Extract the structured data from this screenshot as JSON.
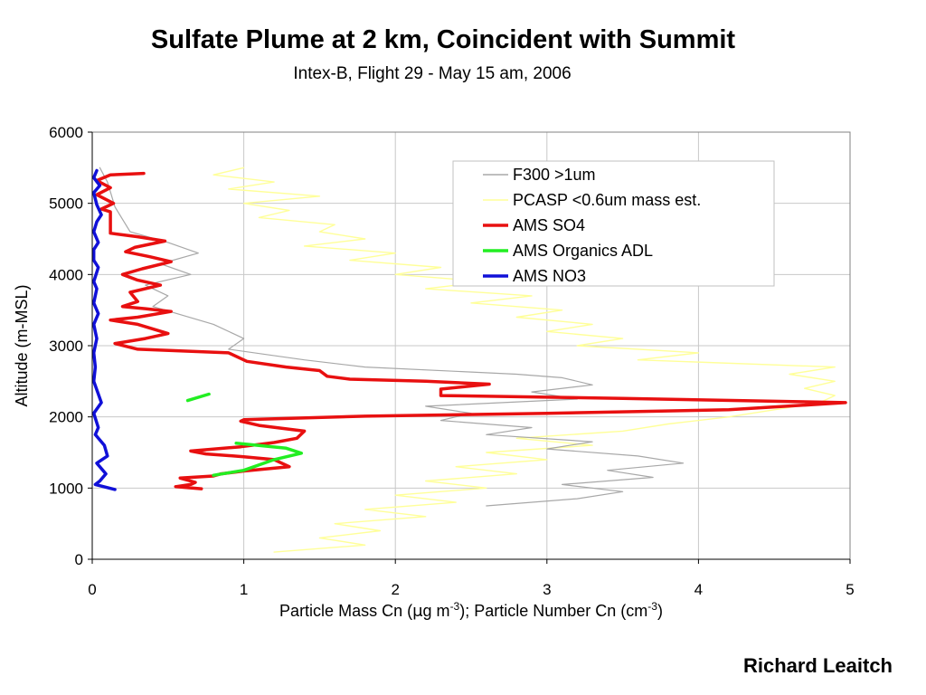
{
  "title": "Sulfate Plume at 2 km, Coincident with Summit",
  "subtitle": "Intex-B, Flight 29 - May 15 am, 2006",
  "author": "Richard Leaitch",
  "colors": {
    "so4": "#e81010",
    "organics": "#22ee22",
    "no3": "#1010d8",
    "f300": "#a8a8a8",
    "pcasp": "#ffff99",
    "grid": "#c8c8c8",
    "axis": "#808080"
  },
  "chart_data": {
    "type": "line",
    "xlabel_parts": [
      "Particle Mass Cn (",
      "μ",
      "g m",
      "-3",
      "); Particle Number Cn (cm",
      "-3",
      ")"
    ],
    "ylabel": "Altitude (m-MSL)",
    "xlim": [
      0,
      5
    ],
    "ylim": [
      0,
      6000
    ],
    "x_ticks": [
      0,
      1,
      2,
      3,
      4,
      5
    ],
    "y_ticks": [
      0,
      1000,
      2000,
      3000,
      4000,
      5000,
      6000
    ],
    "grid": true,
    "legend_position": "top-right",
    "series": [
      {
        "name": "F300 >1um",
        "style": "thin-grey",
        "points": [
          [
            0.05,
            5500
          ],
          [
            0.1,
            5300
          ],
          [
            0.15,
            4950
          ],
          [
            0.25,
            4600
          ],
          [
            0.5,
            4450
          ],
          [
            0.7,
            4300
          ],
          [
            0.45,
            4150
          ],
          [
            0.65,
            4000
          ],
          [
            0.35,
            3850
          ],
          [
            0.5,
            3700
          ],
          [
            0.4,
            3550
          ],
          [
            0.8,
            3300
          ],
          [
            1.0,
            3100
          ],
          [
            0.9,
            2950
          ],
          [
            1.4,
            2800
          ],
          [
            1.8,
            2700
          ],
          [
            2.8,
            2600
          ],
          [
            3.1,
            2550
          ],
          [
            3.3,
            2450
          ],
          [
            2.9,
            2350
          ],
          [
            3.2,
            2250
          ],
          [
            2.2,
            2150
          ],
          [
            2.5,
            2050
          ],
          [
            2.3,
            1950
          ],
          [
            2.9,
            1850
          ],
          [
            2.6,
            1750
          ],
          [
            3.3,
            1650
          ],
          [
            3.0,
            1550
          ],
          [
            3.6,
            1450
          ],
          [
            3.9,
            1350
          ],
          [
            3.4,
            1250
          ],
          [
            3.7,
            1150
          ],
          [
            3.1,
            1050
          ],
          [
            3.5,
            950
          ],
          [
            3.2,
            850
          ],
          [
            2.6,
            750
          ]
        ]
      },
      {
        "name": "PCASP <0.6um mass est.",
        "style": "thin-yellow",
        "points": [
          [
            1.0,
            5500
          ],
          [
            0.8,
            5400
          ],
          [
            1.2,
            5300
          ],
          [
            0.9,
            5200
          ],
          [
            1.5,
            5100
          ],
          [
            1.0,
            5000
          ],
          [
            1.3,
            4900
          ],
          [
            1.1,
            4800
          ],
          [
            1.6,
            4700
          ],
          [
            1.5,
            4600
          ],
          [
            1.8,
            4500
          ],
          [
            1.4,
            4400
          ],
          [
            2.0,
            4300
          ],
          [
            1.7,
            4200
          ],
          [
            2.3,
            4100
          ],
          [
            2.0,
            4000
          ],
          [
            2.6,
            3900
          ],
          [
            2.2,
            3800
          ],
          [
            2.9,
            3700
          ],
          [
            2.5,
            3600
          ],
          [
            3.1,
            3500
          ],
          [
            2.8,
            3400
          ],
          [
            3.3,
            3300
          ],
          [
            3.0,
            3200
          ],
          [
            3.5,
            3100
          ],
          [
            3.2,
            3000
          ],
          [
            4.0,
            2900
          ],
          [
            3.6,
            2800
          ],
          [
            4.9,
            2700
          ],
          [
            4.6,
            2600
          ],
          [
            4.9,
            2500
          ],
          [
            4.7,
            2400
          ],
          [
            4.9,
            2300
          ],
          [
            4.8,
            2200
          ],
          [
            4.5,
            2100
          ],
          [
            4.2,
            2000
          ],
          [
            3.8,
            1900
          ],
          [
            3.5,
            1800
          ],
          [
            2.8,
            1700
          ],
          [
            3.3,
            1600
          ],
          [
            2.6,
            1500
          ],
          [
            3.0,
            1400
          ],
          [
            2.4,
            1300
          ],
          [
            2.8,
            1200
          ],
          [
            2.2,
            1100
          ],
          [
            2.6,
            1000
          ],
          [
            2.0,
            900
          ],
          [
            2.4,
            800
          ],
          [
            1.8,
            700
          ],
          [
            2.2,
            600
          ],
          [
            1.6,
            500
          ],
          [
            1.9,
            400
          ],
          [
            1.5,
            300
          ],
          [
            1.8,
            200
          ],
          [
            1.2,
            100
          ]
        ]
      },
      {
        "name": "AMS SO4",
        "style": "thick",
        "points": [
          [
            0.34,
            5420
          ],
          [
            0.12,
            5400
          ],
          [
            0.03,
            5320
          ],
          [
            0.12,
            5220
          ],
          [
            0.03,
            5120
          ],
          [
            0.14,
            5000
          ],
          [
            0.06,
            4920
          ],
          [
            0.12,
            4880
          ],
          [
            0.12,
            4580
          ],
          [
            0.3,
            4530
          ],
          [
            0.48,
            4470
          ],
          [
            0.28,
            4380
          ],
          [
            0.22,
            4320
          ],
          [
            0.38,
            4250
          ],
          [
            0.52,
            4180
          ],
          [
            0.33,
            4080
          ],
          [
            0.2,
            4000
          ],
          [
            0.3,
            3920
          ],
          [
            0.45,
            3850
          ],
          [
            0.25,
            3750
          ],
          [
            0.3,
            3620
          ],
          [
            0.2,
            3550
          ],
          [
            0.35,
            3520
          ],
          [
            0.52,
            3480
          ],
          [
            0.3,
            3400
          ],
          [
            0.12,
            3360
          ],
          [
            0.3,
            3300
          ],
          [
            0.5,
            3170
          ],
          [
            0.35,
            3100
          ],
          [
            0.15,
            3030
          ],
          [
            0.3,
            2950
          ],
          [
            0.9,
            2900
          ],
          [
            1.02,
            2780
          ],
          [
            1.28,
            2700
          ],
          [
            1.5,
            2650
          ],
          [
            1.55,
            2570
          ],
          [
            1.7,
            2530
          ],
          [
            2.2,
            2500
          ],
          [
            2.62,
            2460
          ],
          [
            2.3,
            2390
          ],
          [
            2.3,
            2300
          ],
          [
            3.5,
            2260
          ],
          [
            4.97,
            2200
          ],
          [
            4.2,
            2100
          ],
          [
            3.0,
            2050
          ],
          [
            1.8,
            2010
          ],
          [
            1.0,
            1960
          ],
          [
            0.98,
            1940
          ],
          [
            1.1,
            1880
          ],
          [
            1.4,
            1800
          ],
          [
            1.35,
            1700
          ],
          [
            1.2,
            1640
          ],
          [
            0.98,
            1580
          ],
          [
            0.65,
            1520
          ],
          [
            0.75,
            1480
          ],
          [
            1.0,
            1440
          ],
          [
            1.2,
            1400
          ],
          [
            1.3,
            1300
          ],
          [
            1.0,
            1240
          ],
          [
            0.85,
            1200
          ],
          [
            0.8,
            1170
          ],
          [
            0.58,
            1140
          ],
          [
            0.68,
            1080
          ],
          [
            0.65,
            1050
          ],
          [
            0.55,
            1020
          ],
          [
            0.72,
            990
          ]
        ]
      },
      {
        "name": "AMS Organics ADL",
        "style": "thick",
        "segments": [
          [
            [
              0.63,
              2230
            ],
            [
              0.77,
              2320
            ]
          ],
          [
            [
              0.95,
              1630
            ],
            [
              1.28,
              1560
            ],
            [
              1.38,
              1490
            ],
            [
              1.2,
              1400
            ],
            [
              1.0,
              1250
            ],
            [
              0.8,
              1180
            ]
          ]
        ]
      },
      {
        "name": "AMS NO3",
        "style": "thick",
        "points": [
          [
            0.03,
            5460
          ],
          [
            0.01,
            5360
          ],
          [
            0.05,
            5250
          ],
          [
            0.01,
            5150
          ],
          [
            0.03,
            4980
          ],
          [
            0.06,
            4840
          ],
          [
            0.03,
            4740
          ],
          [
            0.01,
            4600
          ],
          [
            0.04,
            4450
          ],
          [
            0.01,
            4350
          ],
          [
            0.01,
            4200
          ],
          [
            0.04,
            4100
          ],
          [
            0.01,
            3900
          ],
          [
            0.03,
            3800
          ],
          [
            0.01,
            3600
          ],
          [
            0.04,
            3450
          ],
          [
            0.01,
            3300
          ],
          [
            0.03,
            3100
          ],
          [
            0.01,
            2900
          ],
          [
            0.02,
            2700
          ],
          [
            0.01,
            2500
          ],
          [
            0.06,
            2200
          ],
          [
            0.01,
            2050
          ],
          [
            0.04,
            1850
          ],
          [
            0.02,
            1750
          ],
          [
            0.08,
            1600
          ],
          [
            0.1,
            1450
          ],
          [
            0.03,
            1350
          ],
          [
            0.09,
            1200
          ],
          [
            0.05,
            1100
          ],
          [
            0.02,
            1050
          ],
          [
            0.15,
            980
          ]
        ]
      }
    ]
  }
}
